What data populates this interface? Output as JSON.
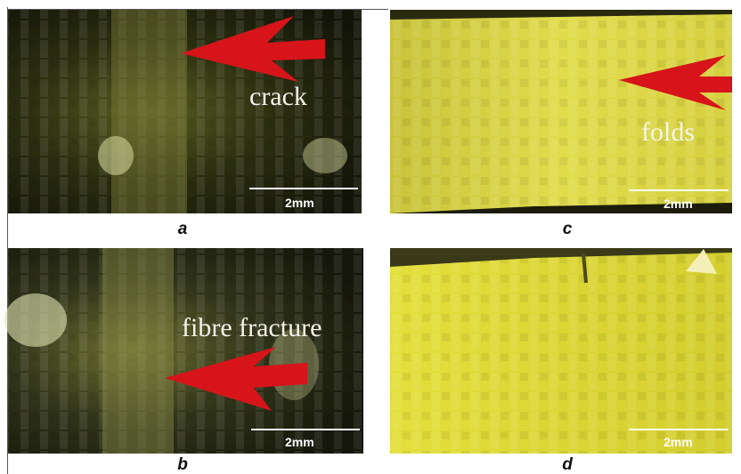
{
  "panels": [
    {
      "label": "a",
      "annotation": "crack",
      "scale_bar": "2mm"
    },
    {
      "label": "c",
      "annotation": "folds",
      "scale_bar": "2mm"
    },
    {
      "label": "b",
      "annotation": "fibre fracture",
      "scale_bar": "2mm"
    },
    {
      "label": "d",
      "scale_bar": "2mm"
    }
  ]
}
